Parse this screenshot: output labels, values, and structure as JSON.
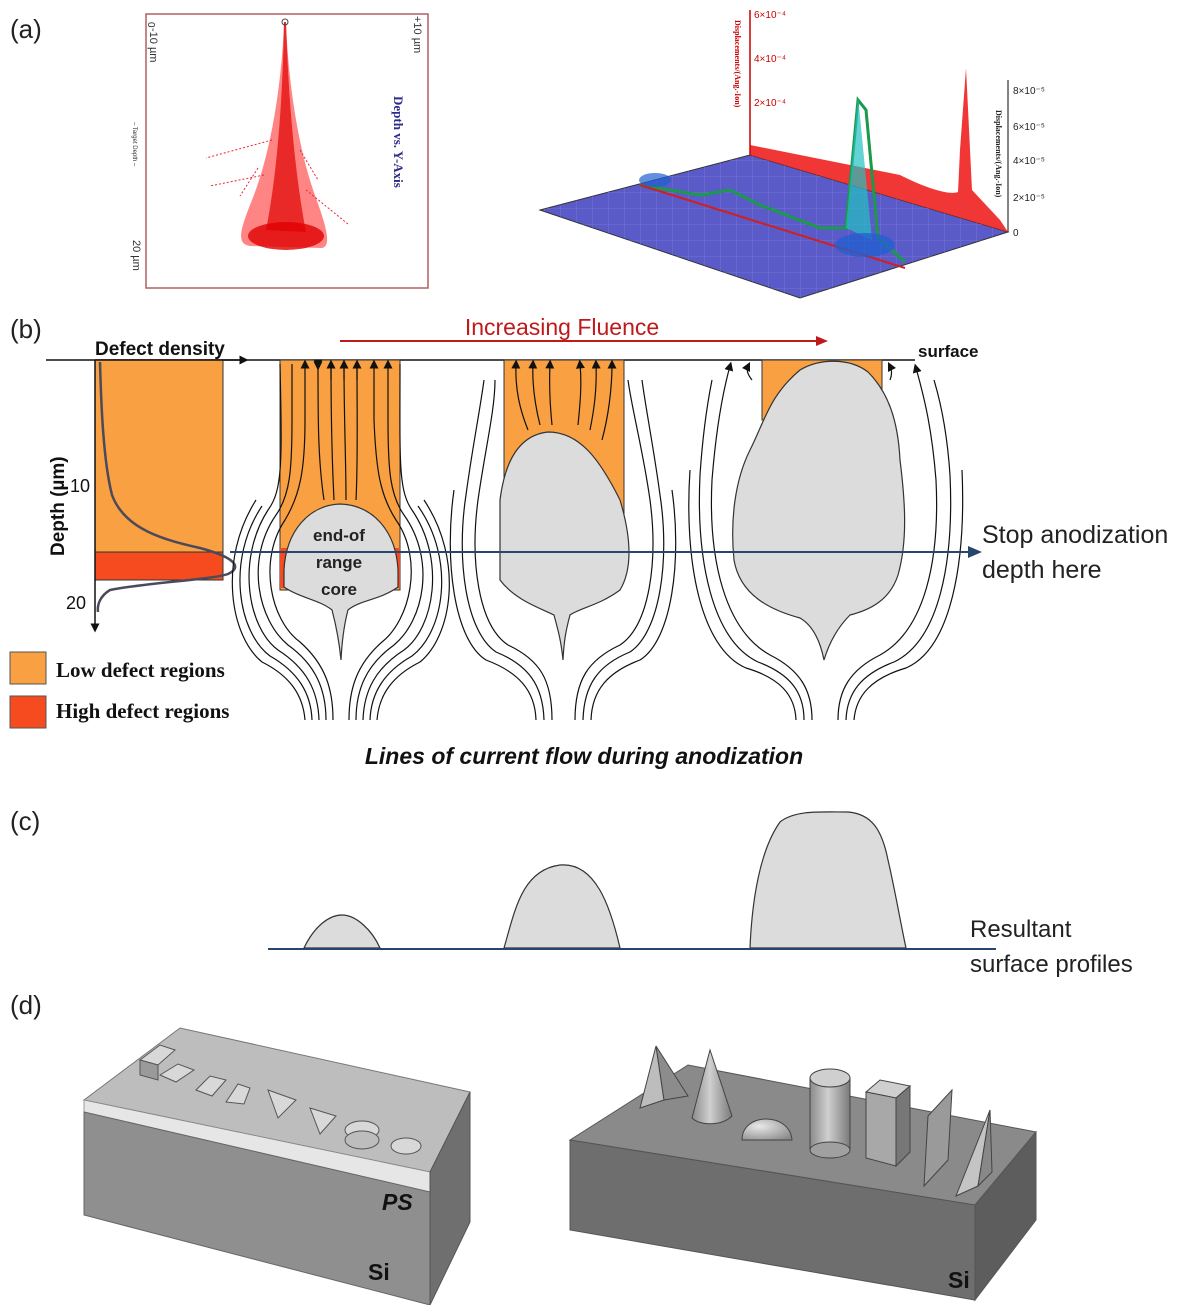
{
  "panels": {
    "a": "(a)",
    "b": "(b)",
    "c": "(c)",
    "d": "(d)"
  },
  "panel_a": {
    "trim_labels": {
      "left_top": "-10 µm",
      "right_top": "+10 µm",
      "zero": "0",
      "mid": "– Target Depth –",
      "bottom": "20 µm",
      "side_title": "Depth vs. Y-Axis"
    },
    "plot3d": {
      "left_axis_title": "Displacements/(Ang.-Ion)",
      "right_axis_title": "Displacements/(Ang.-Ion)",
      "left_ticks": [
        "6×10⁻⁴",
        "4×10⁻⁴",
        "2×10⁻⁴"
      ],
      "right_ticks": [
        "8×10⁻⁵",
        "6×10⁻⁵",
        "4×10⁻⁵",
        "2×10⁻⁵",
        "0"
      ]
    }
  },
  "panel_b": {
    "increasing_fluence": "Increasing Fluence",
    "defect_density": "Defect density",
    "depth_label": "Depth (µm)",
    "tick_10": "10",
    "tick_20": "20",
    "surface": "surface",
    "end_of_range_core": [
      "end-of",
      "range",
      "core"
    ],
    "stop_line_1": "Stop anodization",
    "stop_line_2": "depth here",
    "legend": [
      {
        "label": "Low defect regions",
        "color": "#F8A042"
      },
      {
        "label": "High defect regions",
        "color": "#F64B1E"
      }
    ],
    "caption": "Lines of current flow during anodization"
  },
  "panel_c": {
    "resultant_1": "Resultant",
    "resultant_2": "surface profiles"
  },
  "panel_d": {
    "left_top_label": "PS",
    "left_bottom_label": "Si",
    "right_label": "Si"
  },
  "colors": {
    "orange": "#F8A042",
    "red_orange": "#F64B1E",
    "core_grey": "#DCDCDC",
    "navy_line": "#27466D",
    "fluence_red": "#C0191C"
  }
}
